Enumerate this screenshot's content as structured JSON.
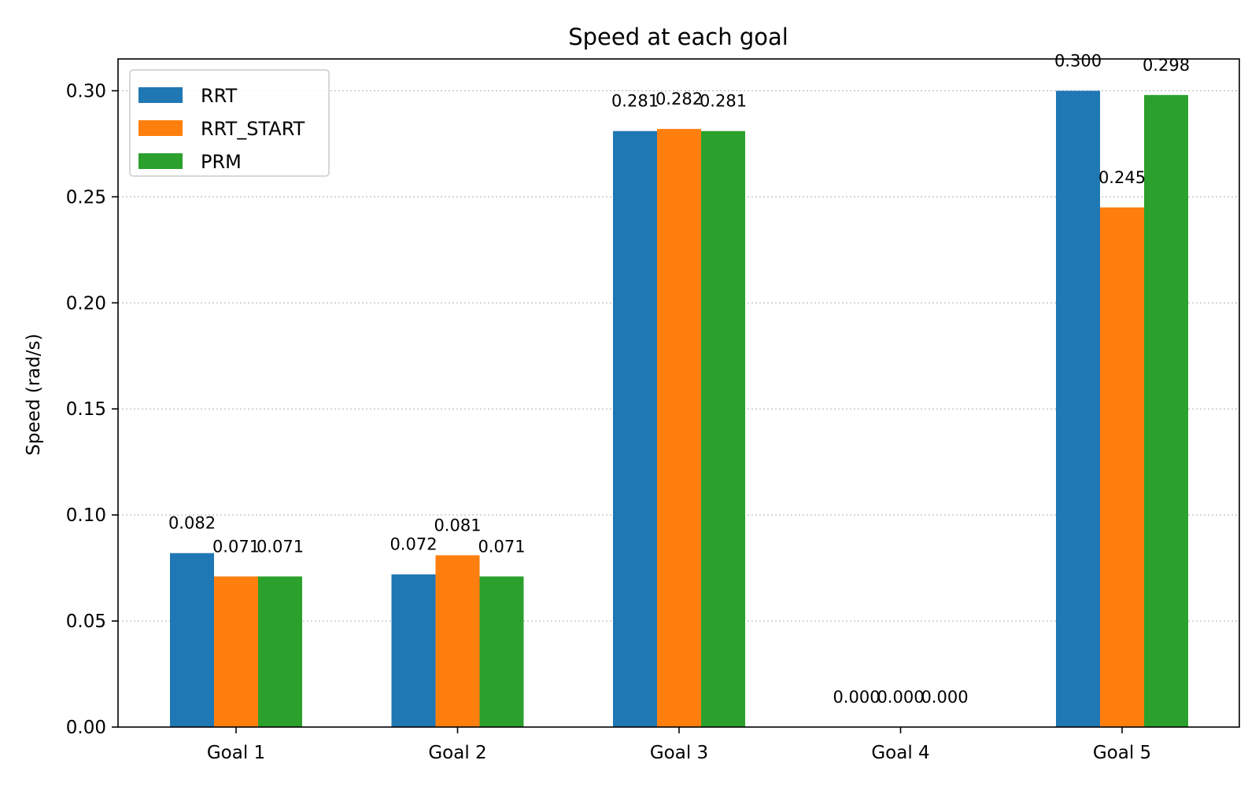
{
  "chart_data": {
    "type": "bar",
    "title": "Speed at each goal",
    "xlabel": "",
    "ylabel": "Speed (rad/s)",
    "categories": [
      "Goal 1",
      "Goal 2",
      "Goal 3",
      "Goal 4",
      "Goal 5"
    ],
    "series": [
      {
        "name": "RRT",
        "color": "#1f77b4",
        "values": [
          0.082,
          0.072,
          0.281,
          0.0,
          0.3
        ]
      },
      {
        "name": "RRT_START",
        "color": "#ff7f0e",
        "values": [
          0.071,
          0.081,
          0.282,
          0.0,
          0.245
        ]
      },
      {
        "name": "PRM",
        "color": "#2ca02c",
        "values": [
          0.071,
          0.071,
          0.281,
          0.0,
          0.298
        ]
      }
    ],
    "ylim": [
      0,
      0.315
    ],
    "yticks": [
      0.0,
      0.05,
      0.1,
      0.15,
      0.2,
      0.25,
      0.3
    ],
    "ytick_labels": [
      "0.00",
      "0.05",
      "0.10",
      "0.15",
      "0.20",
      "0.25",
      "0.30"
    ],
    "value_labels": [
      [
        "0.082",
        "0.072",
        "0.281",
        "0.000",
        "0.300"
      ],
      [
        "0.071",
        "0.081",
        "0.282",
        "0.000",
        "0.245"
      ],
      [
        "0.071",
        "0.071",
        "0.281",
        "0.000",
        "0.298"
      ]
    ],
    "grid": "y-dotted",
    "legend_position": "top-left"
  }
}
